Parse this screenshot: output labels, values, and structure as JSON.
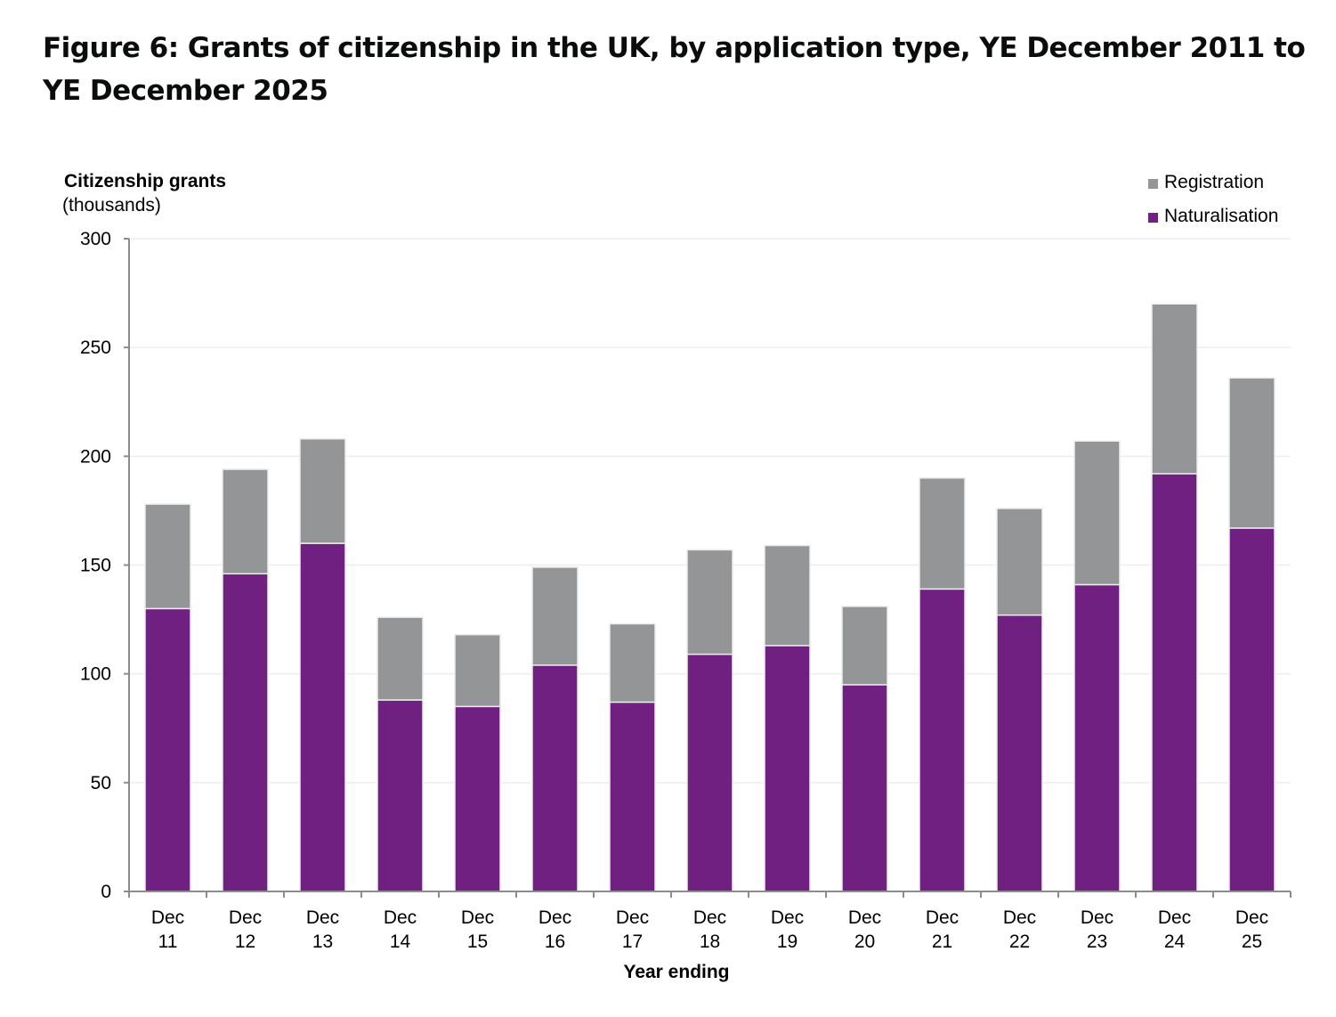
{
  "title": "Figure 6: Grants of citizenship in the UK, by application type, YE December 2011 to YE December 2025",
  "chart_data": {
    "type": "bar",
    "stacked": true,
    "title": "Figure 6: Grants of citizenship in the UK, by application type, YE December 2011 to YE December 2025",
    "ylabel": "Citizenship grants",
    "ylabel_sub": "(thousands)",
    "xlabel": "Year ending",
    "ylim": [
      0,
      300
    ],
    "yticks": [
      0,
      50,
      100,
      150,
      200,
      250,
      300
    ],
    "grid": true,
    "legend_position": "top-right",
    "categories": [
      [
        "Dec",
        "11"
      ],
      [
        "Dec",
        "12"
      ],
      [
        "Dec",
        "13"
      ],
      [
        "Dec",
        "14"
      ],
      [
        "Dec",
        "15"
      ],
      [
        "Dec",
        "16"
      ],
      [
        "Dec",
        "17"
      ],
      [
        "Dec",
        "18"
      ],
      [
        "Dec",
        "19"
      ],
      [
        "Dec",
        "20"
      ],
      [
        "Dec",
        "21"
      ],
      [
        "Dec",
        "22"
      ],
      [
        "Dec",
        "23"
      ],
      [
        "Dec",
        "24"
      ],
      [
        "Dec",
        "25"
      ]
    ],
    "series": [
      {
        "name": "Naturalisation",
        "color": "#6f2080",
        "values": [
          130,
          146,
          160,
          88,
          85,
          104,
          87,
          109,
          113,
          95,
          139,
          127,
          141,
          192,
          167
        ]
      },
      {
        "name": "Registration",
        "color": "#949597",
        "values": [
          48,
          48,
          48,
          38,
          33,
          45,
          36,
          48,
          46,
          36,
          51,
          49,
          66,
          78,
          69
        ]
      }
    ],
    "legend_order": [
      "Registration",
      "Naturalisation"
    ]
  }
}
